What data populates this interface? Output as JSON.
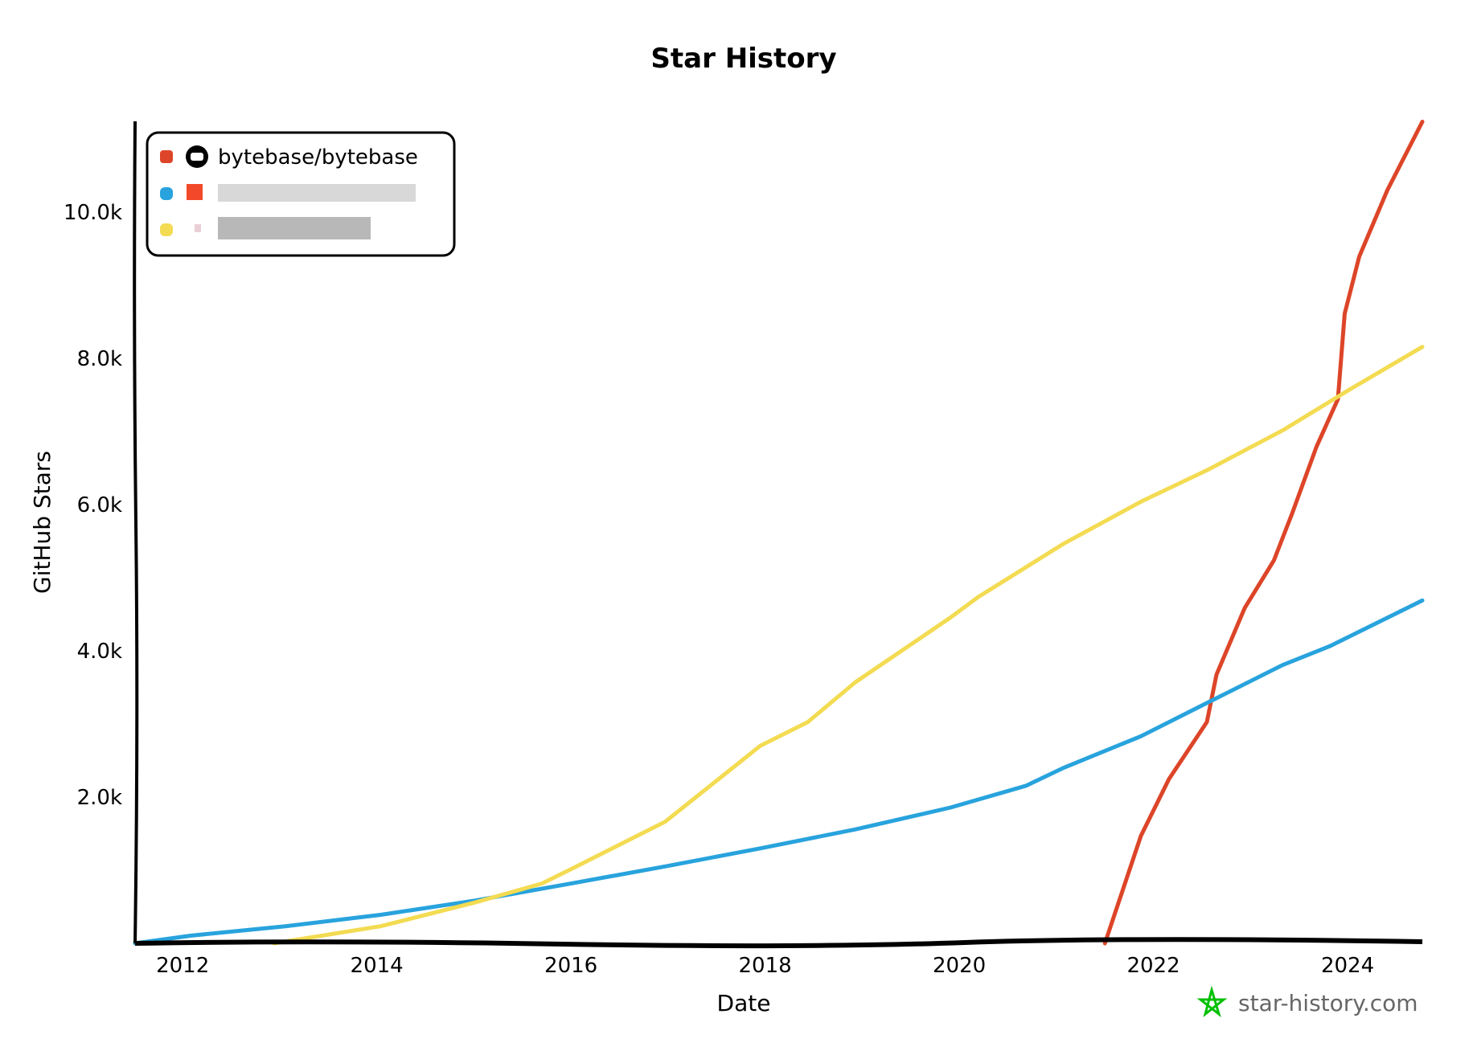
{
  "chart_data": {
    "type": "line",
    "title": "Star History",
    "xlabel": "Date",
    "ylabel": "GitHub Stars",
    "xlim": [
      2011.51,
      2024.77
    ],
    "ylim": [
      0,
      11240
    ],
    "x_ticks": [
      "2012",
      "2014",
      "2016",
      "2018",
      "2020",
      "2022",
      "2024"
    ],
    "y_ticks": [
      {
        "value": 2000,
        "label": "2.0k"
      },
      {
        "value": 4000,
        "label": "4.0k"
      },
      {
        "value": 6000,
        "label": "6.0k"
      },
      {
        "value": 8000,
        "label": "8.0k"
      },
      {
        "value": 10000,
        "label": "10.0k"
      }
    ],
    "grid": false,
    "legend_position": "top-left",
    "series": [
      {
        "name": "bytebase/bytebase",
        "color": "#dd4528",
        "icon": "github-icon",
        "x": [
          2021.5,
          2021.87,
          2022.16,
          2022.55,
          2022.65,
          2022.94,
          2023.24,
          2023.43,
          2023.68,
          2023.9,
          2023.97,
          2024.12,
          2024.41,
          2024.77
        ],
        "y": [
          0,
          1468,
          2247,
          3026,
          3675,
          4584,
          5234,
          5883,
          6792,
          7442,
          8610,
          9390,
          10299,
          11234
        ]
      },
      {
        "name": "",
        "color": "#28a3dd",
        "blurred": true,
        "x": [
          2011.51,
          2012.08,
          2013.06,
          2014.04,
          2015.01,
          2016.0,
          2016.97,
          2017.95,
          2018.93,
          2019.91,
          2020.69,
          2021.08,
          2021.87,
          2022.55,
          2023.33,
          2023.82,
          2024.77
        ],
        "y": [
          0,
          104,
          234,
          390,
          584,
          818,
          1052,
          1299,
          1558,
          1857,
          2156,
          2403,
          2831,
          3286,
          3805,
          4065,
          4688
        ]
      },
      {
        "name": "",
        "color": "#f3db52",
        "blurred": true,
        "x": [
          2012.94,
          2014.04,
          2015.01,
          2015.7,
          2016.0,
          2016.97,
          2017.95,
          2018.44,
          2018.93,
          2019.91,
          2020.2,
          2021.08,
          2021.87,
          2022.55,
          2023.33,
          2024.02,
          2024.77
        ],
        "y": [
          0,
          234,
          558,
          818,
          1013,
          1662,
          2701,
          3026,
          3571,
          4455,
          4740,
          5468,
          6039,
          6468,
          7013,
          7571,
          8156
        ]
      }
    ],
    "watermark": "star-history.com",
    "watermark_color": "#00c000"
  }
}
